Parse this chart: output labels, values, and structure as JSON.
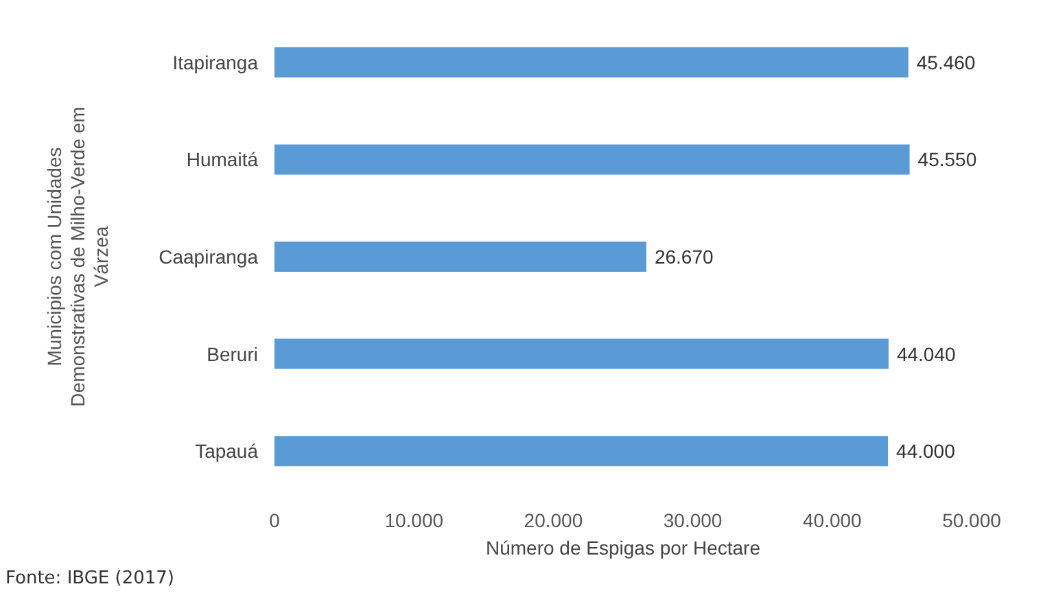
{
  "chart_data": {
    "type": "bar",
    "orientation": "horizontal",
    "xlabel": "Número de Espigas por Hectare",
    "ylabel": "Municipios com Unidades Demonstrativas de Milho-Verde em Várzea",
    "categories": [
      "Itapiranga",
      "Humaitá",
      "Caapiranga",
      "Beruri",
      "Tapauá"
    ],
    "values": [
      45460,
      45550,
      26670,
      44040,
      44000
    ],
    "value_labels": [
      "45.460",
      "45.550",
      "26.670",
      "44.040",
      "44.000"
    ],
    "color": "#5b9bd5",
    "xlim": [
      0,
      50000
    ],
    "xticks": [
      0,
      {
        "value": 10000,
        "label": "10.000"
      },
      {
        "value": 20000,
        "label": "20.000"
      },
      {
        "value": 30000,
        "label": "30.000"
      },
      {
        "value": 40000,
        "label": "40.000"
      },
      {
        "value": 50000,
        "label": "50.000"
      }
    ],
    "grid": false,
    "annotations": [
      "Fonte: IBGE (2017)"
    ]
  }
}
